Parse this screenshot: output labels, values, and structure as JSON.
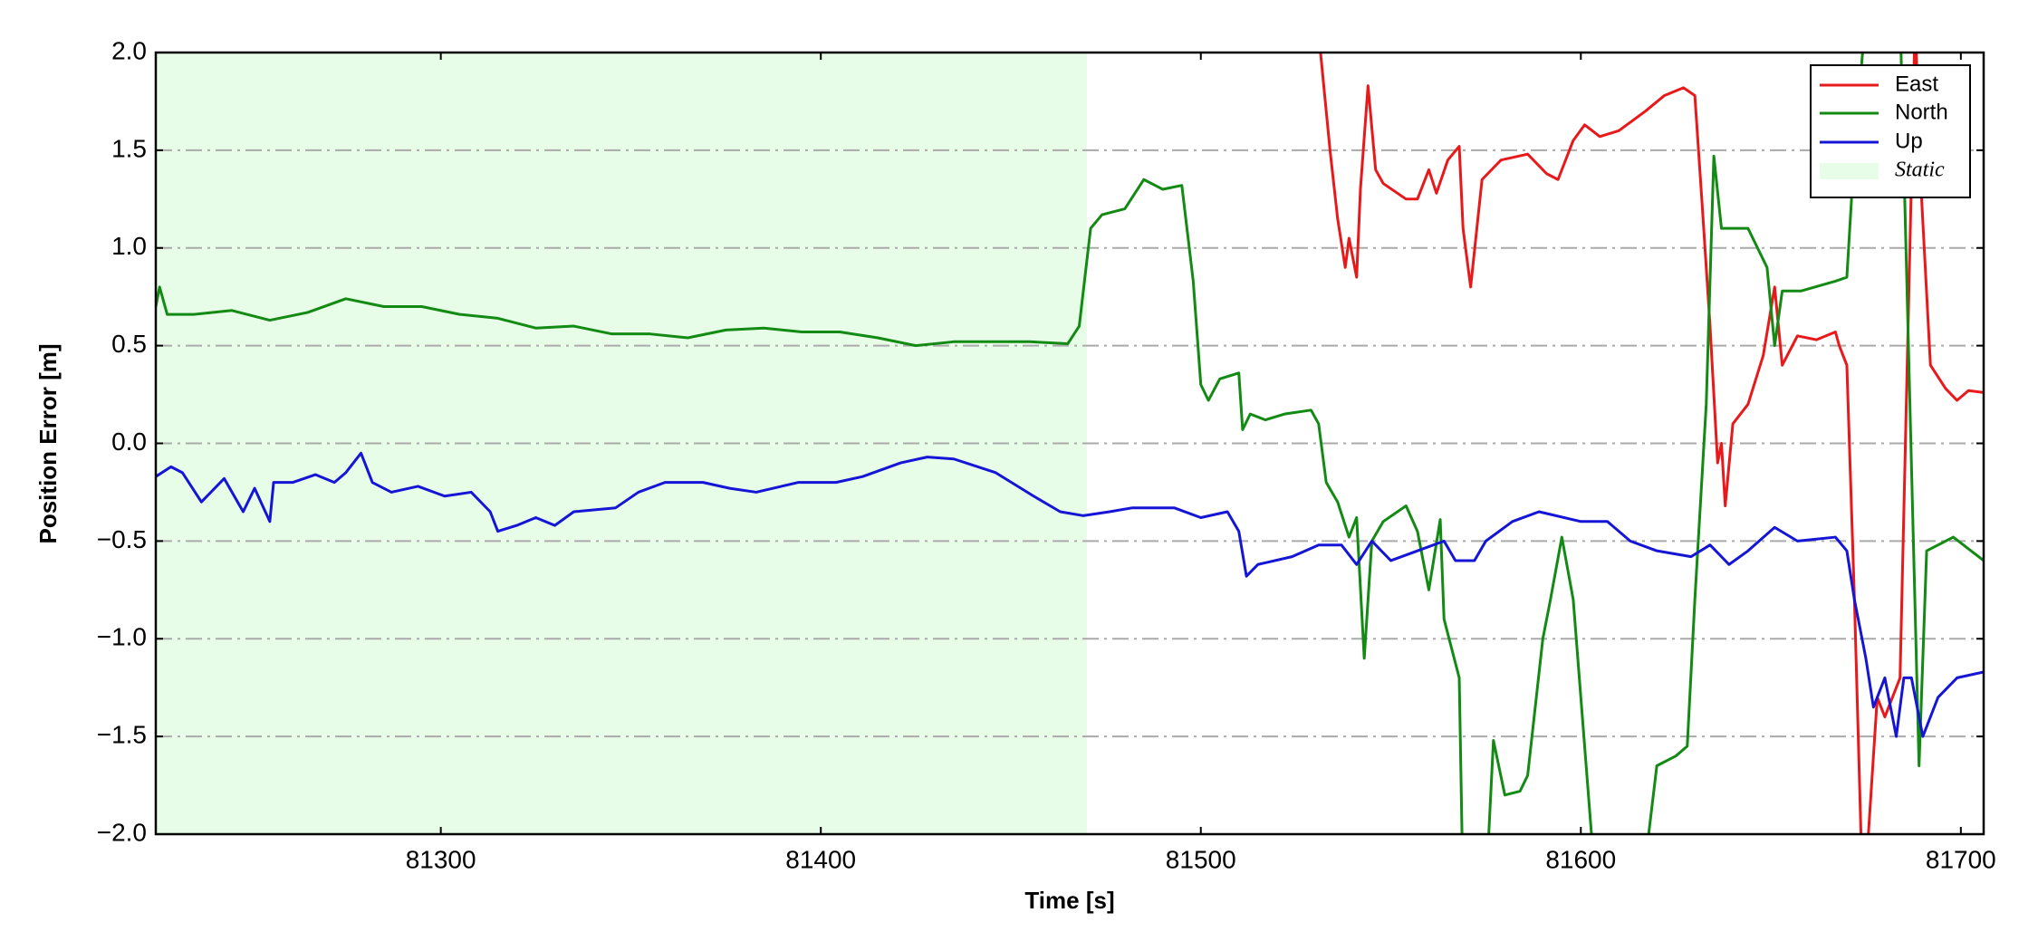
{
  "chart_data": {
    "type": "line",
    "xlabel": "Time [s]",
    "ylabel": "Position Error [m]",
    "xlim": [
      81225,
      81706
    ],
    "ylim": [
      -2.0,
      2.0
    ],
    "xticks": [
      81300,
      81400,
      81500,
      81600,
      81700
    ],
    "yticks": [
      {
        "value": -2.0,
        "label": "−2.0"
      },
      {
        "value": -1.5,
        "label": "−1.5"
      },
      {
        "value": -1.0,
        "label": "−1.0"
      },
      {
        "value": -0.5,
        "label": "−0.5"
      },
      {
        "value": 0.0,
        "label": "0.0"
      },
      0.5,
      {
        "value": 1.0,
        "label": "1.0"
      },
      1.5,
      {
        "value": 2.0,
        "label": "2.0"
      }
    ],
    "grid": true,
    "legend": "upper right",
    "shaded_region": {
      "name": "Static",
      "color": "#e8fde8",
      "x": [
        81225,
        81470
      ]
    },
    "series": [
      {
        "name": "East",
        "color": "#e8191b",
        "x": [
          81531,
          81533,
          81534,
          81536,
          81538,
          81539,
          81541,
          81542,
          81544,
          81546,
          81548,
          81554,
          81557,
          81560,
          81562,
          81565,
          81568,
          81569,
          81571,
          81574,
          81579,
          81586,
          81591,
          81594,
          81598,
          81601,
          81605,
          81610,
          81617,
          81622,
          81627,
          81630,
          81632,
          81634,
          81636,
          81637,
          81638,
          81640,
          81644,
          81648,
          81651,
          81653,
          81657,
          81662,
          81667,
          81668,
          81670,
          81672,
          81674,
          81675,
          81678,
          81680,
          81684,
          81686,
          81688,
          81689,
          81692,
          81696,
          81699,
          81702,
          81706
        ],
        "values": [
          2.1,
          1.7,
          1.5,
          1.15,
          0.9,
          1.05,
          0.85,
          1.3,
          1.83,
          1.4,
          1.33,
          1.25,
          1.25,
          1.4,
          1.28,
          1.45,
          1.52,
          1.1,
          0.8,
          1.35,
          1.45,
          1.48,
          1.38,
          1.35,
          1.55,
          1.63,
          1.57,
          1.6,
          1.7,
          1.78,
          1.82,
          1.78,
          1.2,
          0.6,
          -0.1,
          0.0,
          -0.32,
          0.1,
          0.2,
          0.45,
          0.8,
          0.4,
          0.55,
          0.53,
          0.57,
          0.5,
          0.4,
          -0.8,
          -2.2,
          -2.2,
          -1.3,
          -1.4,
          -1.2,
          0.5,
          2.2,
          1.5,
          0.4,
          0.28,
          0.22,
          0.27,
          0.26
        ]
      },
      {
        "name": "North",
        "color": "#138a13",
        "x": [
          81225,
          81226,
          81228,
          81235,
          81245,
          81255,
          81265,
          81275,
          81285,
          81295,
          81305,
          81315,
          81325,
          81335,
          81345,
          81355,
          81365,
          81375,
          81385,
          81395,
          81405,
          81415,
          81425,
          81435,
          81445,
          81455,
          81465,
          81468,
          81471,
          81474,
          81480,
          81485,
          81490,
          81495,
          81498,
          81500,
          81502,
          81505,
          81510,
          81511,
          81513,
          81517,
          81522,
          81529,
          81531,
          81533,
          81536,
          81539,
          81541,
          81543,
          81545,
          81548,
          81554,
          81557,
          81560,
          81563,
          81564,
          81568,
          81569,
          81575,
          81577,
          81580,
          81584,
          81586,
          81590,
          81592,
          81595,
          81598,
          81604,
          81616,
          81620,
          81625,
          81628,
          81630,
          81633,
          81635,
          81637,
          81644,
          81649,
          81651,
          81653,
          81658,
          81667,
          81670,
          81672,
          81675,
          81684,
          81689,
          81691,
          81698,
          81706
        ],
        "values": [
          0.7,
          0.8,
          0.66,
          0.66,
          0.68,
          0.63,
          0.67,
          0.74,
          0.7,
          0.7,
          0.66,
          0.64,
          0.59,
          0.6,
          0.56,
          0.56,
          0.54,
          0.58,
          0.59,
          0.57,
          0.57,
          0.54,
          0.5,
          0.52,
          0.52,
          0.52,
          0.51,
          0.6,
          1.1,
          1.17,
          1.2,
          1.35,
          1.3,
          1.32,
          0.83,
          0.3,
          0.22,
          0.33,
          0.36,
          0.07,
          0.15,
          0.12,
          0.15,
          0.17,
          0.1,
          -0.2,
          -0.3,
          -0.48,
          -0.38,
          -1.1,
          -0.5,
          -0.4,
          -0.32,
          -0.45,
          -0.75,
          -0.39,
          -0.9,
          -1.2,
          -2.3,
          -2.3,
          -1.52,
          -1.8,
          -1.78,
          -1.7,
          -1.0,
          -0.8,
          -0.48,
          -0.8,
          -2.3,
          -2.3,
          -1.65,
          -1.6,
          -1.55,
          -0.8,
          0.2,
          1.47,
          1.1,
          1.1,
          0.9,
          0.5,
          0.78,
          0.78,
          0.83,
          0.85,
          1.5,
          2.2,
          2.2,
          -1.65,
          -0.55,
          -0.48,
          -0.6
        ]
      },
      {
        "name": "Up",
        "color": "#1515d6",
        "x": [
          81225,
          81229,
          81232,
          81237,
          81243,
          81248,
          81251,
          81255,
          81256,
          81261,
          81267,
          81272,
          81275,
          81279,
          81282,
          81287,
          81294,
          81301,
          81308,
          81313,
          81315,
          81320,
          81325,
          81330,
          81335,
          81346,
          81352,
          81359,
          81369,
          81376,
          81383,
          81394,
          81404,
          81411,
          81421,
          81428,
          81435,
          81446,
          81456,
          81463,
          81469,
          81476,
          81482,
          81493,
          81500,
          81507,
          81510,
          81512,
          81515,
          81524,
          81531,
          81537,
          81541,
          81545,
          81550,
          81557,
          81564,
          81567,
          81572,
          81575,
          81582,
          81589,
          81600,
          81607,
          81613,
          81620,
          81629,
          81634,
          81639,
          81644,
          81651,
          81657,
          81667,
          81670,
          81672,
          81675,
          81677,
          81680,
          81683,
          81685,
          81687,
          81690,
          81694,
          81699,
          81706
        ],
        "values": [
          -0.17,
          -0.12,
          -0.15,
          -0.3,
          -0.18,
          -0.35,
          -0.23,
          -0.4,
          -0.2,
          -0.2,
          -0.16,
          -0.2,
          -0.15,
          -0.05,
          -0.2,
          -0.25,
          -0.22,
          -0.27,
          -0.25,
          -0.35,
          -0.45,
          -0.42,
          -0.38,
          -0.42,
          -0.35,
          -0.33,
          -0.25,
          -0.2,
          -0.2,
          -0.23,
          -0.25,
          -0.2,
          -0.2,
          -0.17,
          -0.1,
          -0.07,
          -0.08,
          -0.15,
          -0.27,
          -0.35,
          -0.37,
          -0.35,
          -0.33,
          -0.33,
          -0.38,
          -0.35,
          -0.45,
          -0.68,
          -0.62,
          -0.58,
          -0.52,
          -0.52,
          -0.62,
          -0.5,
          -0.6,
          -0.55,
          -0.5,
          -0.6,
          -0.6,
          -0.5,
          -0.4,
          -0.35,
          -0.4,
          -0.4,
          -0.5,
          -0.55,
          -0.58,
          -0.52,
          -0.62,
          -0.55,
          -0.43,
          -0.5,
          -0.48,
          -0.55,
          -0.8,
          -1.1,
          -1.35,
          -1.2,
          -1.5,
          -1.2,
          -1.2,
          -1.5,
          -1.3,
          -1.2,
          -1.17
        ]
      }
    ]
  }
}
